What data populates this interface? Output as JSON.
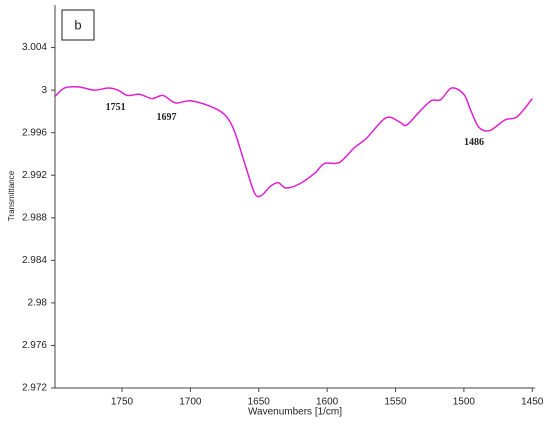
{
  "chart_data": {
    "type": "line",
    "panel_label": "b",
    "x_label": "Wavenumbers [1/cm]",
    "y_label": "Transmittance",
    "xlim": [
      1799,
      1448
    ],
    "ylim": [
      2.972,
      3.008
    ],
    "xticks": [
      1750,
      1700,
      1650,
      1600,
      1550,
      1500,
      1450
    ],
    "yticks": [
      2.972,
      2.976,
      2.98,
      2.984,
      2.988,
      2.992,
      2.996,
      3,
      3.004
    ],
    "peak_labels": [
      1751,
      1697,
      1486
    ],
    "series": [
      {
        "color": "#e020d0",
        "x": [
          1799,
          1792,
          1782,
          1770,
          1760,
          1753,
          1746,
          1737,
          1728,
          1720,
          1711,
          1700,
          1686,
          1675,
          1668,
          1660,
          1653,
          1648,
          1642,
          1636,
          1630,
          1620,
          1609,
          1602,
          1591,
          1580,
          1571,
          1557,
          1547,
          1542,
          1533,
          1524,
          1517,
          1509,
          1500,
          1495,
          1489,
          1481,
          1470,
          1461,
          1450
        ],
        "values": [
          2.9994,
          3.0002,
          3.0003,
          3.0,
          3.0002,
          3.0,
          2.9995,
          2.9996,
          2.9992,
          2.9995,
          2.9988,
          2.999,
          2.9985,
          2.9977,
          2.9962,
          2.993,
          2.9903,
          2.9901,
          2.9909,
          2.9913,
          2.9908,
          2.9912,
          2.9922,
          2.9931,
          2.9932,
          2.9946,
          2.9955,
          2.9974,
          2.997,
          2.9967,
          2.9979,
          2.999,
          2.9991,
          3.0002,
          2.9996,
          2.9981,
          2.9965,
          2.9962,
          2.9972,
          2.9975,
          2.9992
        ]
      }
    ]
  }
}
